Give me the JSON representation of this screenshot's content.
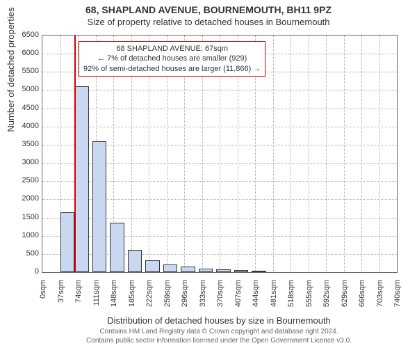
{
  "title": "68, SHAPLAND AVENUE, BOURNEMOUTH, BH11 9PZ",
  "subtitle": "Size of property relative to detached houses in Bournemouth",
  "ylabel": "Number of detached properties",
  "xlabel": "Distribution of detached houses by size in Bournemouth",
  "credits_line1": "Contains HM Land Registry data © Crown copyright and database right 2024.",
  "credits_line2": "Contains public sector information licensed under the Open Government Licence v3.0.",
  "chart": {
    "type": "histogram",
    "ylim": [
      0,
      6500
    ],
    "ytick_step": 500,
    "xtick_step": 37,
    "xlim_ticks": 21,
    "xlabel_suffix": "sqm",
    "bar_fill": "#c9d8f0",
    "bar_border": "#333333",
    "grid_color": "#aaaaaa",
    "background_color": "#ffffff",
    "bars": [
      {
        "x": 0,
        "value": 0
      },
      {
        "x": 37,
        "value": 1650
      },
      {
        "x": 67,
        "value": 5100
      },
      {
        "x": 104,
        "value": 3600
      },
      {
        "x": 141,
        "value": 1350
      },
      {
        "x": 178,
        "value": 620
      },
      {
        "x": 215,
        "value": 320
      },
      {
        "x": 252,
        "value": 220
      },
      {
        "x": 289,
        "value": 150
      },
      {
        "x": 326,
        "value": 100
      },
      {
        "x": 363,
        "value": 70
      },
      {
        "x": 400,
        "value": 50
      },
      {
        "x": 437,
        "value": 30
      }
    ],
    "marker": {
      "value_sqm": 67,
      "color": "#d00000"
    },
    "annotation": {
      "line1": "68 SHAPLAND AVENUE: 67sqm",
      "line2": "← 7% of detached houses are smaller (929)",
      "line3": "92% of semi-detached houses are larger (11,866) →",
      "border_color": "#d00000"
    }
  }
}
